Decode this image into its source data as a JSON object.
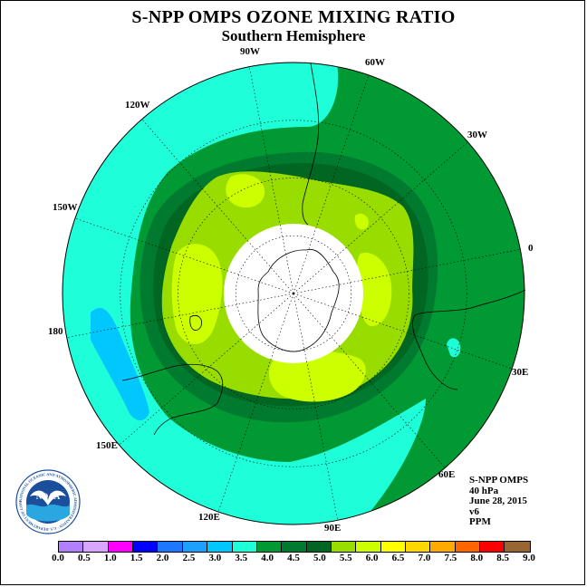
{
  "title": "S-NPP OMPS OZONE MIXING RATIO",
  "subtitle": "Southern Hemisphere",
  "longitude_labels": [
    {
      "name": "90W"
    },
    {
      "name": "60W"
    },
    {
      "name": "30W"
    },
    {
      "name": "0"
    },
    {
      "name": "30E"
    },
    {
      "name": "60E"
    },
    {
      "name": "90E"
    },
    {
      "name": "120E"
    },
    {
      "name": "150E"
    },
    {
      "name": "180"
    },
    {
      "name": "150W"
    },
    {
      "name": "120W"
    }
  ],
  "info": {
    "instrument": "S-NPP OMPS",
    "pressure": "40 hPa",
    "date": "June 28, 2015",
    "version": "v6",
    "units": "PPM"
  },
  "logo": {
    "text": "NOAA",
    "ring_text": "NATIONAL OCEANIC AND ATMOSPHERIC ADMINISTRATION · U.S. DEPARTMENT OF COMMERCE"
  },
  "colorbar": {
    "ticks": [
      "0.0",
      "0.5",
      "1.0",
      "1.5",
      "2.0",
      "2.5",
      "3.0",
      "3.5",
      "4.0",
      "4.5",
      "5.0",
      "5.5",
      "6.0",
      "6.5",
      "7.0",
      "7.5",
      "8.0",
      "8.5",
      "9.0"
    ],
    "colors": [
      "#b27fff",
      "#d9a6ff",
      "#ff00ff",
      "#0000ff",
      "#1e78ff",
      "#1ea0ff",
      "#00c8ff",
      "#1effd9",
      "#009933",
      "#007a2e",
      "#006622",
      "#99dd00",
      "#ccff00",
      "#ffff00",
      "#ffd700",
      "#ffaa00",
      "#ff6600",
      "#ff0000",
      "#996633"
    ]
  },
  "colors": {
    "c3_0": "#00c8ff",
    "c3_5": "#1effd9",
    "c4_0": "#009933",
    "c4_5": "#007a2e",
    "c5_0": "#006622",
    "c5_5": "#99dd00",
    "c6_0": "#ccff00"
  }
}
